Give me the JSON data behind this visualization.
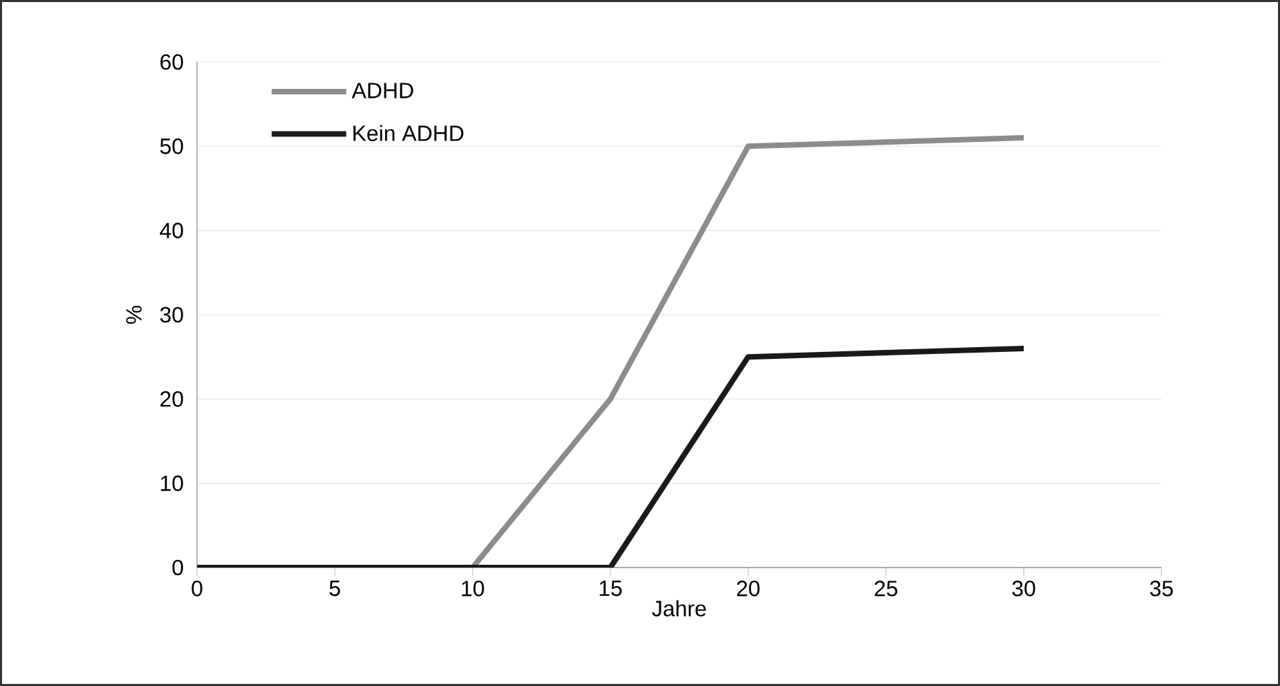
{
  "chart_data": {
    "type": "line",
    "xlabel": "Jahre",
    "ylabel": "%",
    "xlim": [
      0,
      35
    ],
    "xticks": [
      0,
      5,
      10,
      15,
      20,
      25,
      30,
      35
    ],
    "ylim": [
      0,
      60
    ],
    "yticks": [
      0,
      10,
      20,
      30,
      40,
      50,
      60
    ],
    "grid": "y",
    "legend": "top left",
    "marker": "none",
    "line_style": "solid",
    "series": [
      {
        "name": "ADHD",
        "color": "#8c8c8c",
        "x": [
          0,
          5,
          10,
          15,
          20,
          30
        ],
        "values": [
          0,
          0,
          0,
          20,
          50,
          51
        ]
      },
      {
        "name": "Kein ADHD",
        "color": "#1a1a1a",
        "x": [
          0,
          5,
          10,
          15,
          20,
          30
        ],
        "values": [
          0,
          0,
          0,
          0,
          25,
          26
        ]
      }
    ]
  }
}
